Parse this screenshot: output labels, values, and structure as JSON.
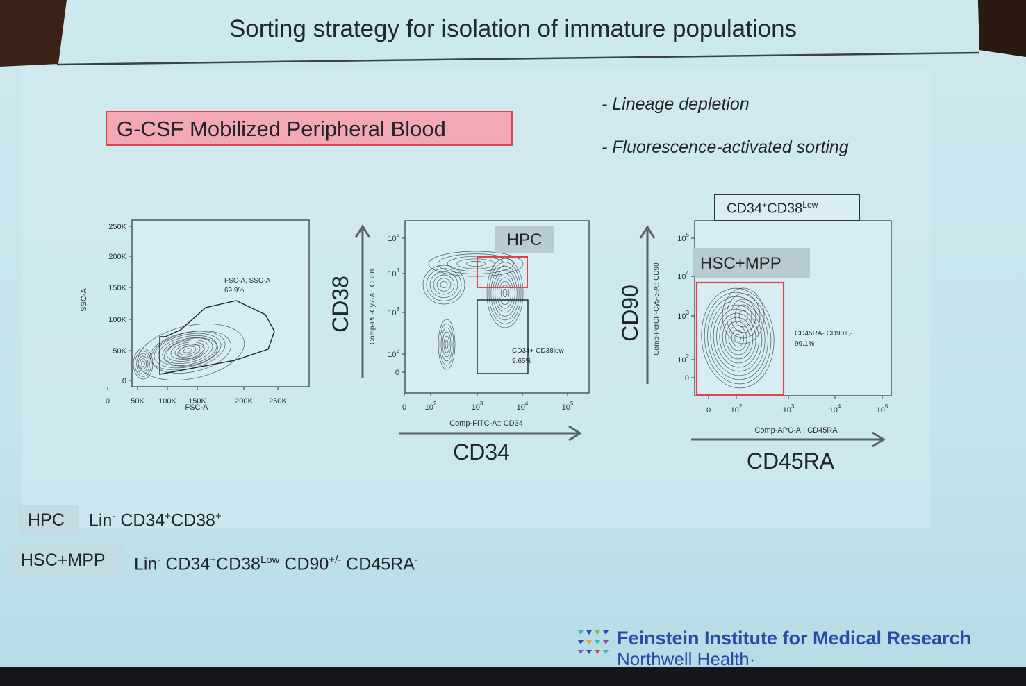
{
  "slide": {
    "title": "Sorting strategy for isolation of immature populations",
    "source_box": "G-CSF Mobilized Peripheral Blood",
    "bullets": [
      "- Lineage depletion",
      "- Fluorescence-activated sorting"
    ],
    "plot3_header": {
      "main": "CD34",
      "sup1": "+",
      "mid": "CD38",
      "sup2": "Low"
    },
    "definitions": [
      {
        "tag": "HPC",
        "text": "Lin",
        "sup": "-",
        "text2": "CD34",
        "sup2": "+",
        "text3": "CD38",
        "sup3": "+"
      },
      {
        "tag": "HSC+MPP",
        "text": "Lin",
        "sup": "-",
        "text2": "CD34",
        "sup2": "+",
        "text3": "CD38",
        "sup3": "Low",
        "text4": "CD90",
        "sup4": "+/-",
        "text5": "CD45RA",
        "sup5": "-"
      }
    ],
    "logo": {
      "line1": "Feinstein Institute for Medical Research",
      "line2": "Northwell Health",
      "line2_mark": "·"
    },
    "colors": {
      "slide_bg": "#c9e6ee",
      "gate_red": "#e0424f",
      "source_box_fill": "#f3a9b3",
      "logo_blue": "#2a4aa8"
    }
  },
  "chart_data": [
    {
      "type": "contour",
      "x_ticks": [
        "0",
        "50K",
        "100K",
        "150K",
        "200K",
        "250K"
      ],
      "y_ticks": [
        "0",
        "50K",
        "100K",
        "150K",
        "200K",
        "250K"
      ],
      "xlabel": "FSC-A",
      "ylabel": "SSC-A",
      "gates": [
        {
          "name": "FSC-A, SSC-A",
          "percent": "69.9%"
        }
      ]
    },
    {
      "type": "contour",
      "x_ticks": [
        "0",
        "10",
        "10",
        "10",
        "10"
      ],
      "x_tick_exp": [
        "",
        "2",
        "3",
        "4",
        "5"
      ],
      "y_ticks": [
        "0",
        "10",
        "10",
        "10",
        "10"
      ],
      "y_tick_exp": [
        "",
        "2",
        "3",
        "4",
        "5"
      ],
      "xlabel": "Comp-FITC-A:: CD34",
      "ylabel": "Comp-PE-Cy7-A:: CD38",
      "x_title": "CD34",
      "y_title": "CD38",
      "gates": [
        {
          "name": "HPC"
        },
        {
          "name": "CD34+ CD38low",
          "percent": "9.65%"
        }
      ]
    },
    {
      "type": "contour",
      "x_ticks": [
        "0",
        "10",
        "10",
        "10",
        "10"
      ],
      "x_tick_exp": [
        "",
        "2",
        "3",
        "4",
        "5"
      ],
      "y_ticks": [
        "0",
        "10",
        "10",
        "10",
        "10"
      ],
      "y_tick_exp": [
        "",
        "2",
        "3",
        "4",
        "5"
      ],
      "xlabel": "Comp-APC-A:: CD45RA",
      "ylabel": "Comp-PerCP-Cy5-5-A:: CD90",
      "x_title": "CD45RA",
      "y_title": "CD90",
      "gates": [
        {
          "name": "HSC+MPP"
        },
        {
          "name": "CD45RA- CD90+,-",
          "percent": "99.1%"
        }
      ]
    }
  ]
}
